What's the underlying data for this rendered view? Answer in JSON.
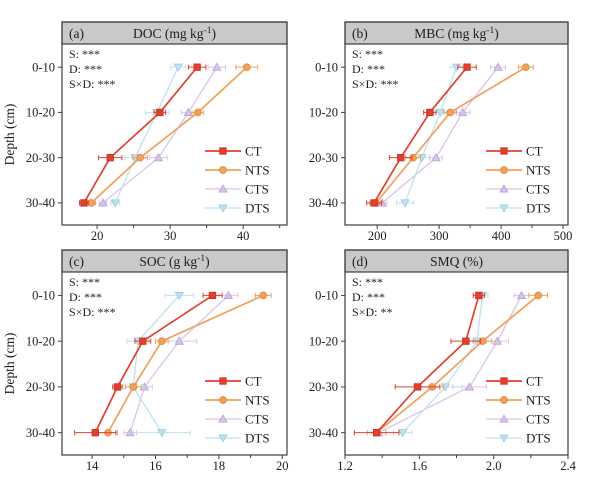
{
  "figure": {
    "y_axis_label": "Depth (cm)",
    "depth_categories": [
      "0-10",
      "10-20",
      "20-30",
      "30-40"
    ],
    "legend_labels": [
      "CT",
      "NTS",
      "CTS",
      "DTS"
    ],
    "series_styles": [
      {
        "name": "CT",
        "color": "#e2402f",
        "edge": "#c93322",
        "marker": "square",
        "line_width": 1.7
      },
      {
        "name": "NTS",
        "color": "#f2a05a",
        "edge": "#e08a3e",
        "marker": "circle",
        "line_width": 1.7
      },
      {
        "name": "CTS",
        "color": "#d8c4e8",
        "edge": "#bda6d6",
        "marker": "triangle-up",
        "line_width": 1.3
      },
      {
        "name": "DTS",
        "color": "#c1e1ef",
        "edge": "#9ecfe3",
        "marker": "triangle-down",
        "line_width": 1.3
      }
    ],
    "colors": {
      "band": "#c9c9c9",
      "frame": "#3e3e3e",
      "text": "#1c1c1c",
      "background": "#ffffff"
    }
  },
  "chart_data": [
    {
      "id": "a",
      "type": "line",
      "panel_label": "(a)",
      "title": "DOC (mg kg⁻¹)",
      "categories": [
        "0-10",
        "10-20",
        "20-30",
        "30-40"
      ],
      "ylabel": "Depth (cm)",
      "xlim": [
        15.2,
        46
      ],
      "xticks": [
        20,
        30,
        40
      ],
      "xtick_labels": [
        "20",
        "30",
        "40"
      ],
      "xminor": [
        25,
        35,
        45
      ],
      "annotations": [
        "S: ***",
        "D: ***",
        "S×D: ***"
      ],
      "legend_position": "lower right",
      "series": [
        {
          "name": "CT",
          "values": [
            33.7,
            28.6,
            21.8,
            18.2
          ],
          "errors": [
            1.2,
            0.8,
            1.6,
            0.6
          ]
        },
        {
          "name": "NTS",
          "values": [
            40.5,
            33.8,
            25.9,
            19.2
          ],
          "errors": [
            1.5,
            0.8,
            1.0,
            0.6
          ]
        },
        {
          "name": "CTS",
          "values": [
            36.4,
            32.5,
            28.4,
            20.8
          ],
          "errors": [
            1.2,
            1.0,
            1.2,
            0.5
          ]
        },
        {
          "name": "DTS",
          "values": [
            31.1,
            28.2,
            25.2,
            22.5
          ],
          "errors": [
            1.0,
            1.6,
            1.4,
            0.6
          ]
        }
      ]
    },
    {
      "id": "b",
      "type": "line",
      "panel_label": "(b)",
      "title": "MBC (mg kg⁻¹)",
      "categories": [
        "0-10",
        "10-20",
        "20-30",
        "30-40"
      ],
      "ylabel": "",
      "xlim": [
        148,
        508
      ],
      "xticks": [
        200,
        300,
        400,
        500
      ],
      "xtick_labels": [
        "200",
        "300",
        "400",
        "500"
      ],
      "xminor": [
        250,
        350,
        450
      ],
      "annotations": [
        "S: ***",
        "D: ***",
        "S×D: ***"
      ],
      "legend_position": "lower right",
      "series": [
        {
          "name": "CT",
          "values": [
            345,
            285,
            238,
            195
          ],
          "errors": [
            15,
            10,
            18,
            12
          ]
        },
        {
          "name": "NTS",
          "values": [
            440,
            318,
            258,
            198
          ],
          "errors": [
            12,
            10,
            12,
            10
          ]
        },
        {
          "name": "CTS",
          "values": [
            395,
            338,
            295,
            208
          ],
          "errors": [
            12,
            12,
            10,
            8
          ]
        },
        {
          "name": "DTS",
          "values": [
            328,
            302,
            272,
            245
          ],
          "errors": [
            10,
            10,
            12,
            14
          ]
        }
      ]
    },
    {
      "id": "c",
      "type": "line",
      "panel_label": "(c)",
      "title": "SOC (g kg⁻¹)",
      "categories": [
        "0-10",
        "10-20",
        "20-30",
        "30-40"
      ],
      "ylabel": "Depth (cm)",
      "xlim": [
        13.05,
        20.15
      ],
      "xticks": [
        14,
        16,
        18,
        20
      ],
      "xtick_labels": [
        "14",
        "16",
        "18",
        "20"
      ],
      "xminor": [
        15,
        17,
        19
      ],
      "annotations": [
        "S: ***",
        "D: ***",
        "S×D: ***"
      ],
      "legend_position": "lower right",
      "series": [
        {
          "name": "CT",
          "values": [
            17.8,
            15.6,
            14.8,
            14.1
          ],
          "errors": [
            0.3,
            0.25,
            0.15,
            0.65
          ]
        },
        {
          "name": "NTS",
          "values": [
            19.4,
            16.2,
            15.3,
            14.5
          ],
          "errors": [
            0.25,
            0.2,
            0.25,
            0.3
          ]
        },
        {
          "name": "CTS",
          "values": [
            18.3,
            16.75,
            15.65,
            15.2
          ],
          "errors": [
            0.3,
            0.55,
            0.25,
            0.2
          ]
        },
        {
          "name": "DTS",
          "values": [
            16.75,
            15.45,
            15.3,
            16.2
          ],
          "errors": [
            0.45,
            0.35,
            0.3,
            0.9
          ]
        }
      ]
    },
    {
      "id": "d",
      "type": "line",
      "panel_label": "(d)",
      "title": "SMQ (%)",
      "categories": [
        "0-10",
        "10-20",
        "20-30",
        "30-40"
      ],
      "ylabel": "",
      "xlim": [
        1.2,
        2.4
      ],
      "xticks": [
        1.2,
        1.6,
        2.0,
        2.4
      ],
      "xtick_labels": [
        "1.2",
        "1.6",
        "2.0",
        "2.4"
      ],
      "xminor": [
        1.4,
        1.8,
        2.2
      ],
      "annotations": [
        "S: ***",
        "D: ***",
        "S×D: **"
      ],
      "legend_position": "lower right",
      "series": [
        {
          "name": "CT",
          "values": [
            1.92,
            1.85,
            1.59,
            1.37
          ],
          "errors": [
            0.03,
            0.08,
            0.12,
            0.12
          ]
        },
        {
          "name": "NTS",
          "values": [
            2.24,
            1.94,
            1.67,
            1.37
          ],
          "errors": [
            0.05,
            0.05,
            0.06,
            0.05
          ]
        },
        {
          "name": "CTS",
          "values": [
            2.15,
            2.02,
            1.87,
            1.38
          ],
          "errors": [
            0.04,
            0.06,
            0.09,
            0.04
          ]
        },
        {
          "name": "DTS",
          "values": [
            1.94,
            1.91,
            1.74,
            1.51
          ],
          "errors": [
            0.03,
            0.04,
            0.09,
            0.05
          ]
        }
      ]
    }
  ]
}
